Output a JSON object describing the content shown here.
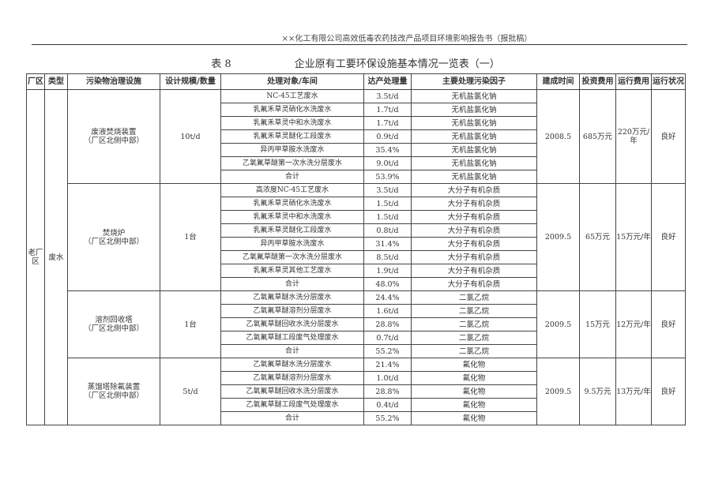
{
  "header_text": "××化工有限公司高效低毒农药技改产品项目环境影响报告书（报批稿）",
  "table_no": "表 8",
  "table_title": "企业原有工要环保设施基本情况一览表（一）",
  "columns": [
    "厂区",
    "类型",
    "污染物治理设施",
    "设计规模/数量",
    "处理对象/车间",
    "达产处理量",
    "主要处理污染因子",
    "建成时间",
    "投资费用",
    "运行费用",
    "运行状况"
  ],
  "site": "老厂区",
  "type": "废水",
  "groups": [
    {
      "facility": "废液焚烧装置",
      "location": "（厂区北侧中部）",
      "scale": "10t/d",
      "built": "2008.5",
      "investment": "685万元",
      "running_cost": "220万元/年",
      "status": "良好",
      "rows": [
        [
          "NC-45工艺废水",
          "3.5t/d",
          "无机盐氯化钠"
        ],
        [
          "乳氟禾草灵硝化水洗废水",
          "1.7t/d",
          "无机盐氯化钠"
        ],
        [
          "乳氟禾草灵中和水洗废水",
          "1.7t/d",
          "无机盐氯化钠"
        ],
        [
          "乳氟禾草灵醚化工段废水",
          "0.9t/d",
          "无机盐氯化钠"
        ],
        [
          "异丙甲草胺水洗废水",
          "35.4%",
          "无机盐氯化钠"
        ],
        [
          "乙氧氟草醚第一次水洗分层废水",
          "9.0t/d",
          "无机盐氯化钠"
        ],
        [
          "合计",
          "53.9%",
          "无机盐氯化钠"
        ]
      ]
    },
    {
      "facility": "焚烧炉",
      "location": "（厂区北侧中部）",
      "scale": "1台",
      "built": "2009.5",
      "investment": "65万元",
      "running_cost": "15万元/年",
      "status": "良好",
      "rows": [
        [
          "高浓度NC-45工艺废水",
          "3.5t/d",
          "大分子有机杂质"
        ],
        [
          "乳氟禾草灵硝化水洗废水",
          "1.5t/d",
          "大分子有机杂质"
        ],
        [
          "乳氟禾草灵中和水洗废水",
          "1.5t/d",
          "大分子有机杂质"
        ],
        [
          "乳氟禾草灵醚化工段废水",
          "0.8t/d",
          "大分子有机杂质"
        ],
        [
          "异丙甲草胺水洗废水",
          "31.4%",
          "大分子有机杂质"
        ],
        [
          "乙氧氟草醚第一次水洗分层废水",
          "8.5t/d",
          "大分子有机杂质"
        ],
        [
          "乳氟禾草灵其他工艺废水",
          "1.9t/d",
          "大分子有机杂质"
        ],
        [
          "合计",
          "48.0%",
          "大分子有机杂质"
        ]
      ]
    },
    {
      "facility": "溶剂回收塔",
      "location": "（厂区北侧中部）",
      "scale": "1台",
      "built": "2009.5",
      "investment": "15万元",
      "running_cost": "12万元/年",
      "status": "良好",
      "rows": [
        [
          "乙氧氟草醚水洗分层废水",
          "24.4%",
          "二氯乙烷"
        ],
        [
          "乙氧氟草醚溶剂分层废水",
          "1.6t/d",
          "二氯乙烷"
        ],
        [
          "乙氧氟草醚回收水洗分层废水",
          "28.8%",
          "二氯乙烷"
        ],
        [
          "乙氧氟草醚工段废气处理废水",
          "0.7t/d",
          "二氯乙烷"
        ],
        [
          "合计",
          "55.2%",
          "二氯乙烷"
        ]
      ]
    },
    {
      "facility": "蒸馏塔除氟装置",
      "location": "（厂区北侧中部）",
      "scale": "5t/d",
      "built": "2009.5",
      "investment": "9.5万元",
      "running_cost": "13万元/年",
      "status": "良好",
      "rows": [
        [
          "乙氧氟草醚水洗分层废水",
          "21.4%",
          "氟化物"
        ],
        [
          "乙氧氟草醚溶剂分层废水",
          "1.0t/d",
          "氟化物"
        ],
        [
          "乙氧氟草醚回收水洗分层废水",
          "28.8%",
          "氟化物"
        ],
        [
          "乙氧氟草醚工段废气处理废水",
          "0.4t/d",
          "氟化物"
        ],
        [
          "合计",
          "55.2%",
          "氟化物"
        ]
      ]
    }
  ]
}
